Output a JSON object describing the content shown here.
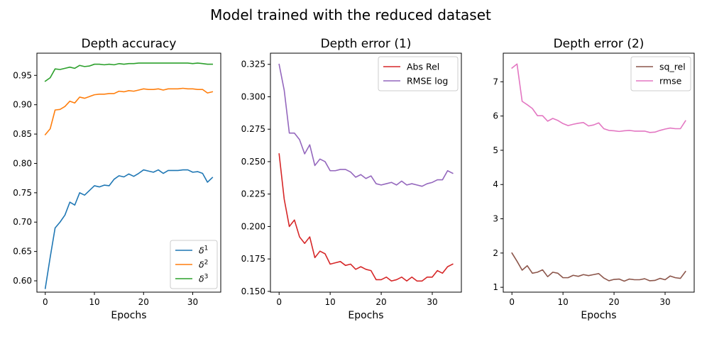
{
  "suptitle": "Model trained with the reduced dataset",
  "chart_data": [
    {
      "type": "line",
      "title": "Depth accuracy",
      "xlabel": "Epochs",
      "ylabel": "",
      "xlim": [
        -1.7,
        35.7
      ],
      "ylim": [
        0.5807,
        0.9878
      ],
      "xticks": [
        0,
        10,
        20,
        30
      ],
      "yticks": [
        0.6,
        0.65,
        0.7,
        0.75,
        0.8,
        0.85,
        0.9,
        0.95
      ],
      "ytick_labels": [
        "0.60",
        "0.65",
        "0.70",
        "0.75",
        "0.80",
        "0.85",
        "0.90",
        "0.95"
      ],
      "legend_loc": "lower-right",
      "grid": false,
      "x": [
        0,
        1,
        2,
        3,
        4,
        5,
        6,
        7,
        8,
        9,
        10,
        11,
        12,
        13,
        14,
        15,
        16,
        17,
        18,
        19,
        20,
        21,
        22,
        23,
        24,
        25,
        26,
        27,
        28,
        29,
        30,
        31,
        32,
        33,
        34
      ],
      "series": [
        {
          "name": "δ",
          "sup": "1",
          "color": "#1f77b4",
          "values": [
            0.587,
            0.64,
            0.69,
            0.7,
            0.712,
            0.734,
            0.729,
            0.75,
            0.746,
            0.754,
            0.762,
            0.76,
            0.763,
            0.762,
            0.773,
            0.779,
            0.777,
            0.782,
            0.778,
            0.783,
            0.789,
            0.787,
            0.785,
            0.789,
            0.783,
            0.788,
            0.788,
            0.788,
            0.789,
            0.789,
            0.785,
            0.786,
            0.783,
            0.768,
            0.776
          ]
        },
        {
          "name": "δ",
          "sup": "2",
          "color": "#ff7f0e",
          "values": [
            0.849,
            0.859,
            0.891,
            0.892,
            0.897,
            0.906,
            0.903,
            0.913,
            0.911,
            0.914,
            0.917,
            0.918,
            0.918,
            0.919,
            0.919,
            0.923,
            0.922,
            0.924,
            0.923,
            0.925,
            0.927,
            0.926,
            0.926,
            0.927,
            0.925,
            0.927,
            0.927,
            0.927,
            0.928,
            0.927,
            0.927,
            0.926,
            0.926,
            0.92,
            0.922
          ]
        },
        {
          "name": "δ",
          "sup": "3",
          "color": "#2ca02c",
          "values": [
            0.94,
            0.946,
            0.961,
            0.96,
            0.962,
            0.964,
            0.962,
            0.967,
            0.965,
            0.966,
            0.969,
            0.969,
            0.968,
            0.969,
            0.968,
            0.97,
            0.969,
            0.97,
            0.97,
            0.971,
            0.971,
            0.971,
            0.971,
            0.971,
            0.971,
            0.971,
            0.971,
            0.971,
            0.971,
            0.971,
            0.97,
            0.971,
            0.97,
            0.969,
            0.969
          ]
        }
      ]
    },
    {
      "type": "line",
      "title": "Depth error (1)",
      "xlabel": "Epochs",
      "ylabel": "",
      "xlim": [
        -1.7,
        35.7
      ],
      "ylim": [
        0.1494,
        0.3336
      ],
      "xticks": [
        0,
        10,
        20,
        30
      ],
      "yticks": [
        0.15,
        0.175,
        0.2,
        0.225,
        0.25,
        0.275,
        0.3,
        0.325
      ],
      "ytick_labels": [
        "0.150",
        "0.175",
        "0.200",
        "0.225",
        "0.250",
        "0.275",
        "0.300",
        "0.325"
      ],
      "legend_loc": "upper-right",
      "grid": false,
      "x": [
        0,
        1,
        2,
        3,
        4,
        5,
        6,
        7,
        8,
        9,
        10,
        11,
        12,
        13,
        14,
        15,
        16,
        17,
        18,
        19,
        20,
        21,
        22,
        23,
        24,
        25,
        26,
        27,
        28,
        29,
        30,
        31,
        32,
        33,
        34
      ],
      "series": [
        {
          "name": "Abs Rel",
          "color": "#d62728",
          "values": [
            0.256,
            0.221,
            0.2,
            0.205,
            0.192,
            0.187,
            0.192,
            0.176,
            0.181,
            0.179,
            0.171,
            0.172,
            0.173,
            0.17,
            0.171,
            0.167,
            0.169,
            0.167,
            0.166,
            0.159,
            0.159,
            0.161,
            0.158,
            0.159,
            0.161,
            0.158,
            0.161,
            0.158,
            0.158,
            0.161,
            0.161,
            0.166,
            0.164,
            0.169,
            0.171
          ]
        },
        {
          "name": "RMSE log",
          "color": "#9467bd",
          "values": [
            0.325,
            0.305,
            0.272,
            0.272,
            0.267,
            0.256,
            0.263,
            0.247,
            0.252,
            0.25,
            0.243,
            0.243,
            0.244,
            0.244,
            0.242,
            0.238,
            0.24,
            0.237,
            0.239,
            0.233,
            0.232,
            0.233,
            0.234,
            0.232,
            0.235,
            0.232,
            0.233,
            0.232,
            0.231,
            0.233,
            0.234,
            0.236,
            0.236,
            0.243,
            0.241
          ]
        }
      ]
    },
    {
      "type": "line",
      "title": "Depth error (2)",
      "xlabel": "Epochs",
      "ylabel": "",
      "xlim": [
        -1.7,
        35.7
      ],
      "ylim": [
        0.858,
        7.835
      ],
      "xticks": [
        0,
        10,
        20,
        30
      ],
      "yticks": [
        1,
        2,
        3,
        4,
        5,
        6,
        7
      ],
      "ytick_labels": [
        "1",
        "2",
        "3",
        "4",
        "5",
        "6",
        "7"
      ],
      "legend_loc": "upper-right",
      "grid": false,
      "x": [
        0,
        1,
        2,
        3,
        4,
        5,
        6,
        7,
        8,
        9,
        10,
        11,
        12,
        13,
        14,
        15,
        16,
        17,
        18,
        19,
        20,
        21,
        22,
        23,
        24,
        25,
        26,
        27,
        28,
        29,
        30,
        31,
        32,
        33,
        34
      ],
      "series": [
        {
          "name": "sq_rel",
          "color": "#8c564b",
          "values": [
            2.0,
            1.76,
            1.5,
            1.63,
            1.41,
            1.44,
            1.51,
            1.31,
            1.44,
            1.41,
            1.28,
            1.28,
            1.35,
            1.32,
            1.37,
            1.34,
            1.37,
            1.4,
            1.27,
            1.19,
            1.23,
            1.24,
            1.18,
            1.24,
            1.22,
            1.22,
            1.25,
            1.19,
            1.2,
            1.26,
            1.22,
            1.33,
            1.28,
            1.26,
            1.46
          ]
        },
        {
          "name": "rmse",
          "color": "#e377c2",
          "values": [
            7.4,
            7.52,
            6.43,
            6.33,
            6.22,
            6.01,
            6.01,
            5.85,
            5.93,
            5.87,
            5.78,
            5.72,
            5.76,
            5.79,
            5.81,
            5.71,
            5.74,
            5.8,
            5.63,
            5.58,
            5.57,
            5.55,
            5.57,
            5.58,
            5.56,
            5.56,
            5.56,
            5.52,
            5.53,
            5.58,
            5.62,
            5.65,
            5.63,
            5.63,
            5.86
          ]
        }
      ]
    }
  ]
}
